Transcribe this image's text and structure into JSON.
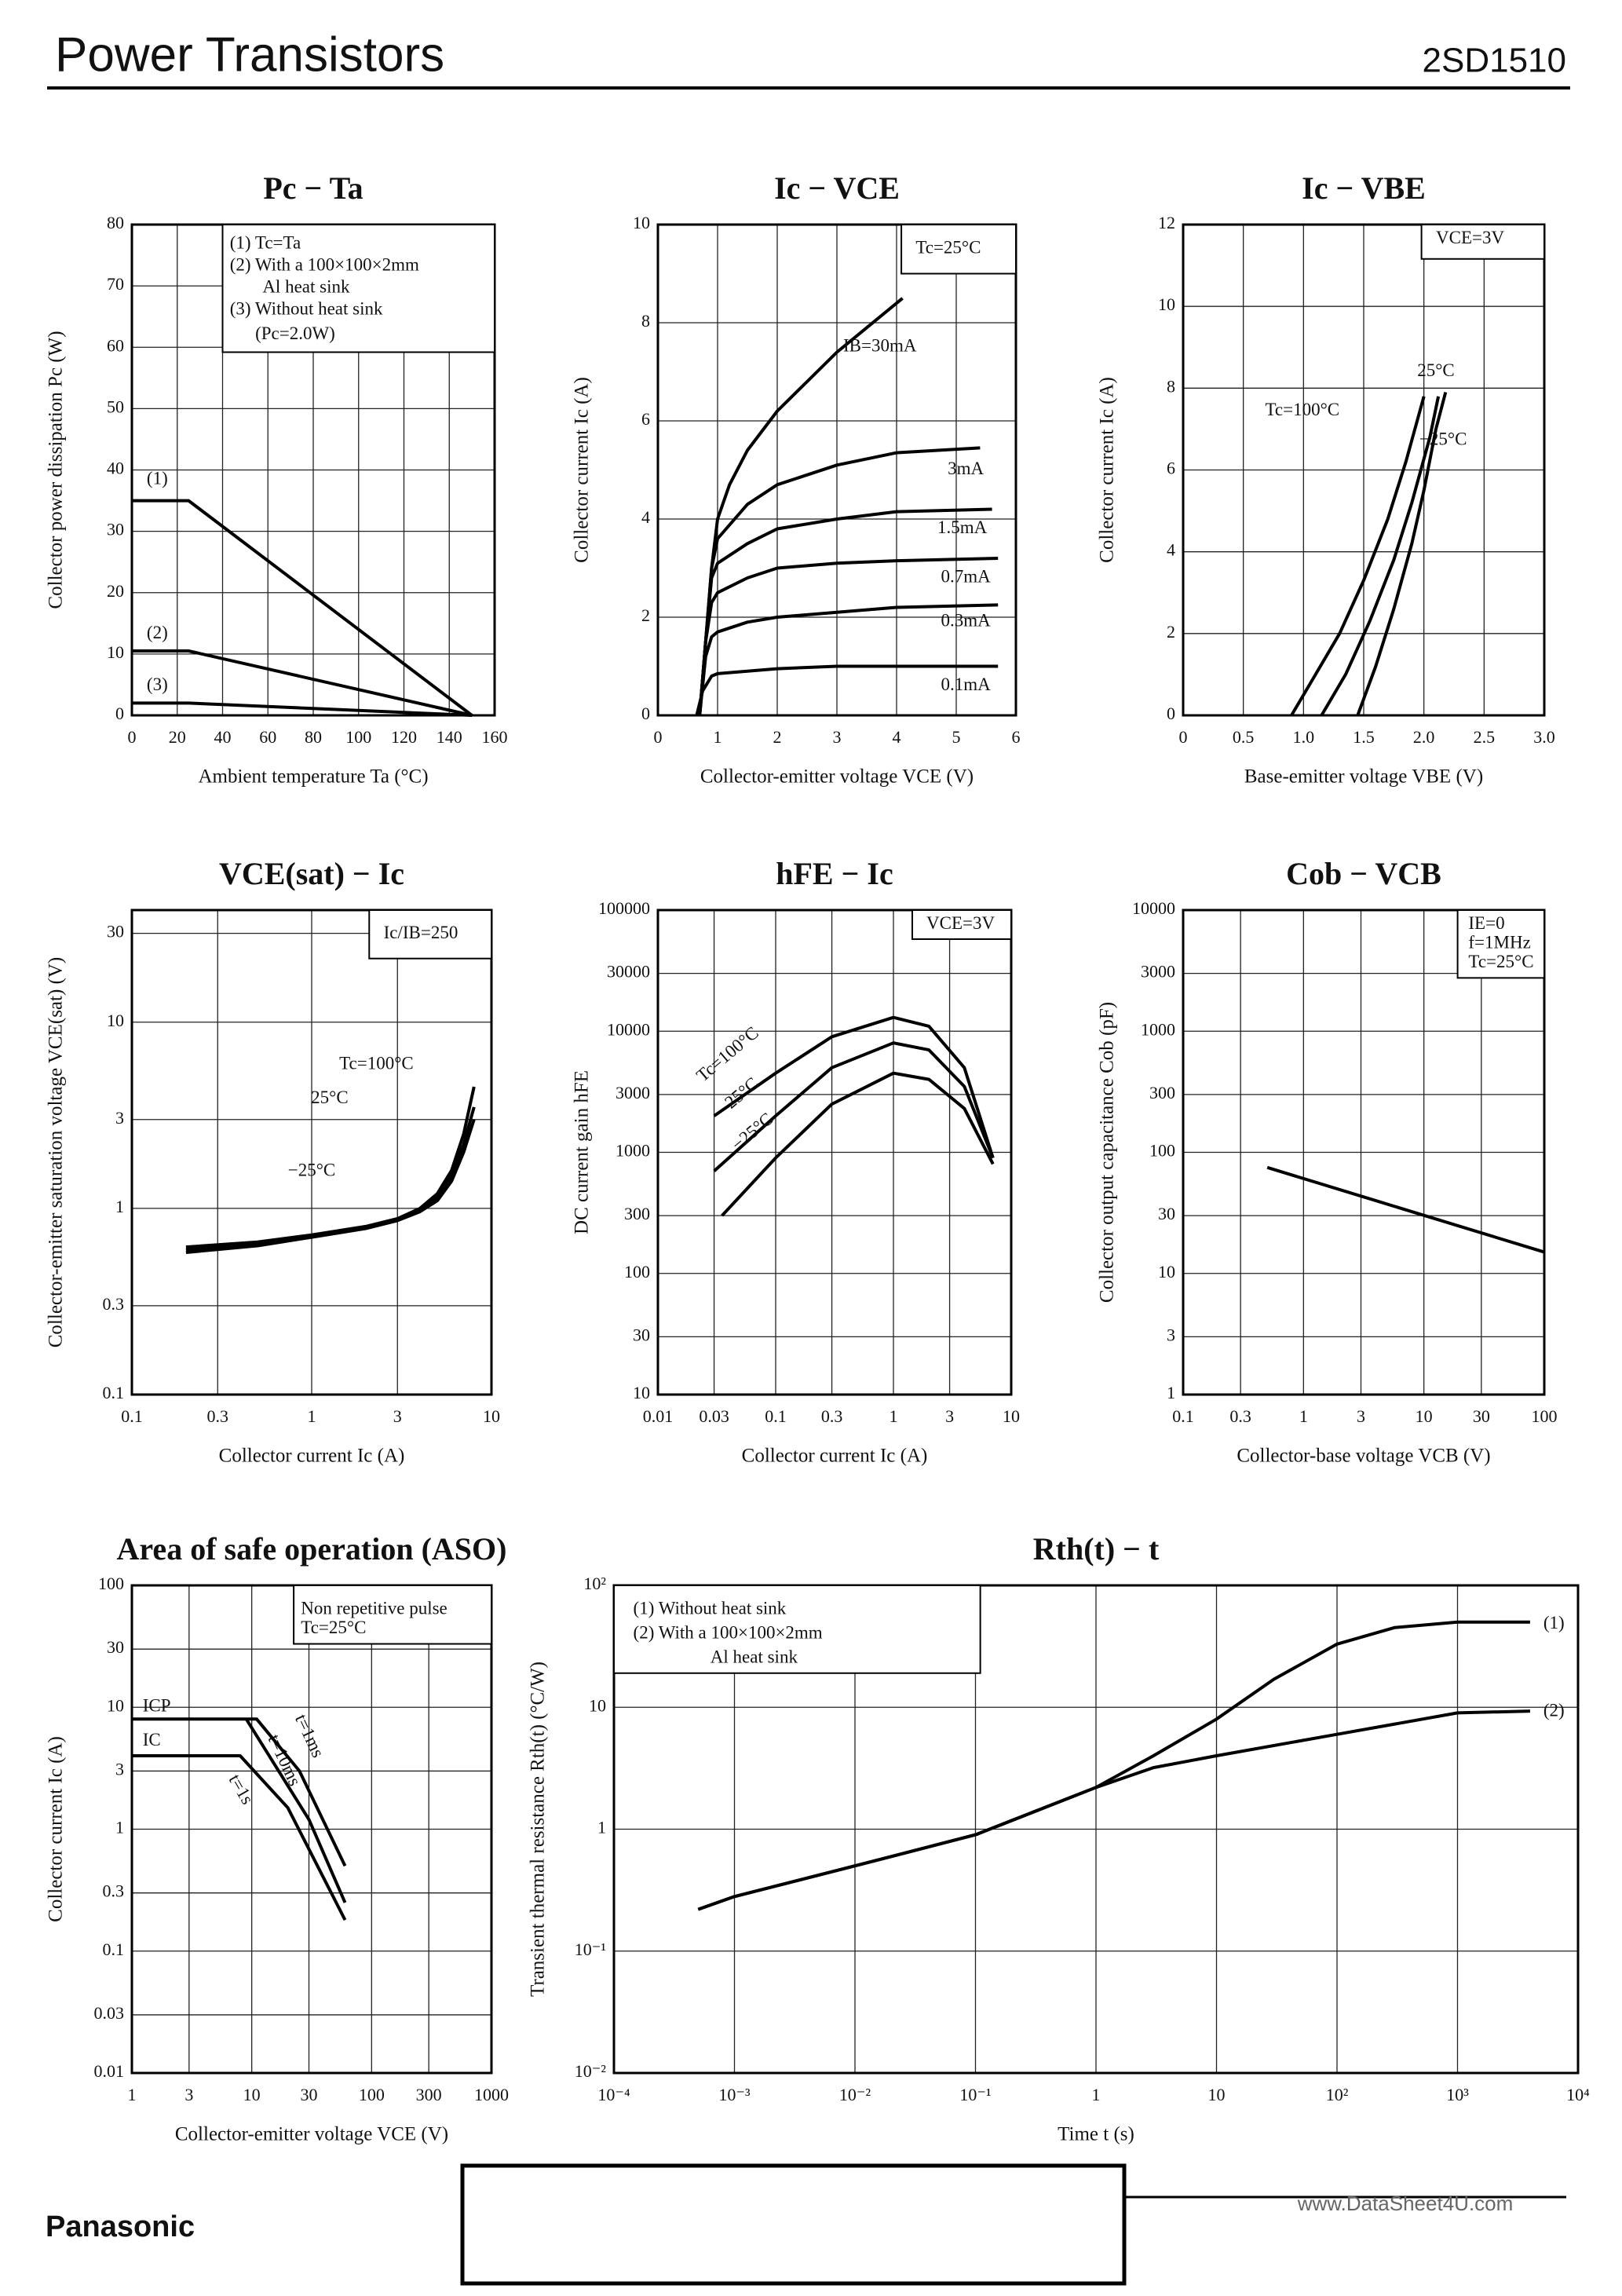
{
  "header": {
    "title": "Power Transistors",
    "part_number": "2SD1510"
  },
  "chart_data": [
    {
      "type": "line",
      "title": "Pc − Ta",
      "xlabel": "Ambient temperature Ta (°C)",
      "ylabel": "Collector power dissipation Pc (W)",
      "xlim": [
        0,
        160
      ],
      "ylim": [
        0,
        80
      ],
      "xticks": [
        0,
        20,
        40,
        60,
        80,
        100,
        120,
        140,
        160
      ],
      "yticks": [
        0,
        10,
        20,
        30,
        40,
        50,
        60,
        70,
        80
      ],
      "grid": true,
      "color": "#000000",
      "series": [
        {
          "name": "(1)",
          "x": [
            0,
            25,
            150
          ],
          "values": [
            35,
            35,
            0
          ]
        },
        {
          "name": "(2)",
          "x": [
            0,
            25,
            150
          ],
          "values": [
            10.5,
            10.5,
            0
          ]
        },
        {
          "name": "(3)",
          "x": [
            0,
            25,
            150
          ],
          "values": [
            2,
            2,
            0
          ]
        }
      ],
      "annotations": [
        "(1) Tc=Ta",
        "(2) With a 100×100×2mm",
        "Al heat sink",
        "(3) Without heat sink",
        "(Pc=2.0W)"
      ]
    },
    {
      "type": "line",
      "title": "Ic − VCE",
      "xlabel": "Collector-emitter voltage VCE (V)",
      "ylabel": "Collector current Ic (A)",
      "xlim": [
        0,
        6
      ],
      "ylim": [
        0,
        10
      ],
      "xticks": [
        0,
        1,
        2,
        3,
        4,
        5,
        6
      ],
      "yticks": [
        0,
        2,
        4,
        6,
        8,
        10
      ],
      "grid": true,
      "color": "#000000",
      "series": [
        {
          "name": "IB=30mA",
          "x": [
            0.7,
            0.8,
            0.9,
            1.0,
            1.2,
            1.5,
            2.0,
            2.5,
            3.0,
            3.5,
            4.1
          ],
          "values": [
            0,
            1.5,
            3.0,
            4.0,
            4.7,
            5.4,
            6.2,
            6.8,
            7.4,
            7.9,
            8.5
          ]
        },
        {
          "name": "3mA",
          "x": [
            0.7,
            0.8,
            0.9,
            1.0,
            1.5,
            2,
            3,
            4,
            5.4
          ],
          "values": [
            0,
            1.5,
            3.0,
            3.6,
            4.3,
            4.7,
            5.1,
            5.35,
            5.45
          ]
        },
        {
          "name": "1.5mA",
          "x": [
            0.7,
            0.8,
            0.9,
            1.0,
            1.5,
            2,
            3,
            4,
            5.6
          ],
          "values": [
            0,
            1.5,
            2.8,
            3.1,
            3.5,
            3.8,
            4.0,
            4.15,
            4.2
          ]
        },
        {
          "name": "0.7mA",
          "x": [
            0.7,
            0.8,
            0.9,
            1,
            1.5,
            2,
            3,
            4,
            5.7
          ],
          "values": [
            0,
            1.5,
            2.3,
            2.5,
            2.8,
            3.0,
            3.1,
            3.15,
            3.2
          ]
        },
        {
          "name": "0.3mA",
          "x": [
            0.7,
            0.8,
            0.9,
            1,
            1.5,
            2,
            3,
            4,
            5.7
          ],
          "values": [
            0,
            1.2,
            1.6,
            1.7,
            1.9,
            2.0,
            2.1,
            2.2,
            2.25
          ]
        },
        {
          "name": "0.1mA",
          "x": [
            0.65,
            0.75,
            0.9,
            1,
            1.5,
            2,
            3,
            4,
            5.7
          ],
          "values": [
            0,
            0.5,
            0.8,
            0.85,
            0.9,
            0.95,
            1.0,
            1.0,
            1.0
          ]
        }
      ],
      "annotations": [
        "Tc=25°C"
      ]
    },
    {
      "type": "line",
      "title": "Ic − VBE",
      "xlabel": "Base-emitter voltage VBE (V)",
      "ylabel": "Collector current Ic (A)",
      "xlim": [
        0,
        3
      ],
      "ylim": [
        0,
        12
      ],
      "xticks": [
        0,
        0.5,
        {
          "value": 1,
          "label": "1.0"
        },
        1.5,
        {
          "value": 2,
          "label": "2.0"
        },
        2.5,
        {
          "value": 3,
          "label": "3.0"
        }
      ],
      "yticks": [
        0,
        2,
        4,
        6,
        8,
        10,
        12
      ],
      "grid": true,
      "color": "#000000",
      "series": [
        {
          "name": "Tc=100°C",
          "x": [
            0.9,
            1.1,
            1.3,
            1.5,
            1.7,
            1.85,
            2.0
          ],
          "values": [
            0,
            1,
            2,
            3.3,
            4.8,
            6.2,
            7.8
          ]
        },
        {
          "name": "25°C",
          "x": [
            1.15,
            1.35,
            1.55,
            1.75,
            1.9,
            2.05,
            2.12
          ],
          "values": [
            0,
            1,
            2.3,
            3.8,
            5.2,
            6.8,
            7.8
          ]
        },
        {
          "name": "−25°C",
          "x": [
            1.45,
            1.6,
            1.75,
            1.9,
            2.0,
            2.1,
            2.18
          ],
          "values": [
            0,
            1.2,
            2.6,
            4.2,
            5.5,
            7,
            7.9
          ]
        }
      ],
      "annotations": [
        "VCE=3V"
      ]
    },
    {
      "type": "line",
      "title": "VCE(sat) − Ic",
      "xlabel": "Collector current Ic (A)",
      "ylabel": "Collector-emitter saturation voltage VCE(sat) (V)",
      "xlog": true,
      "ylog": true,
      "xlim": [
        0.1,
        10
      ],
      "ylim": [
        0.1,
        40
      ],
      "xticks": [
        0.1,
        0.3,
        1,
        3,
        10
      ],
      "yticks": [
        0.1,
        0.3,
        1,
        3,
        10,
        30
      ],
      "grid": true,
      "color": "#000000",
      "series": [
        {
          "name": "Tc=100°C",
          "x": [
            0.2,
            0.5,
            1,
            2,
            3,
            4,
            5,
            6,
            7,
            8
          ],
          "values": [
            0.62,
            0.66,
            0.72,
            0.8,
            0.88,
            1.0,
            1.2,
            1.6,
            2.5,
            4.5
          ]
        },
        {
          "name": "25°C",
          "x": [
            0.2,
            0.5,
            1,
            2,
            3,
            4,
            5,
            6,
            7,
            8
          ],
          "values": [
            0.6,
            0.65,
            0.71,
            0.79,
            0.87,
            0.98,
            1.15,
            1.5,
            2.2,
            3.5
          ]
        },
        {
          "name": "−25°C",
          "x": [
            0.2,
            0.5,
            1,
            2,
            3,
            4,
            5,
            6,
            7,
            8
          ],
          "values": [
            0.58,
            0.63,
            0.7,
            0.78,
            0.86,
            0.96,
            1.1,
            1.4,
            2.0,
            3.0
          ]
        }
      ],
      "annotations": [
        "Ic/IB=250"
      ]
    },
    {
      "type": "line",
      "title": "hFE − Ic",
      "xlabel": "Collector current Ic (A)",
      "ylabel": "DC current gain hFE",
      "xlog": true,
      "ylog": true,
      "xlim": [
        0.01,
        10
      ],
      "ylim": [
        10,
        100000
      ],
      "xticks": [
        0.01,
        0.03,
        0.1,
        0.3,
        1,
        3,
        10
      ],
      "yticks": [
        10,
        30,
        100,
        300,
        1000,
        3000,
        10000,
        30000,
        100000
      ],
      "grid": true,
      "color": "#000000",
      "series": [
        {
          "name": "Tc=100°C",
          "x": [
            0.03,
            0.1,
            0.3,
            1,
            2,
            4,
            7
          ],
          "values": [
            2000,
            4500,
            9000,
            13000,
            11000,
            5000,
            900
          ]
        },
        {
          "name": "25°C",
          "x": [
            0.03,
            0.1,
            0.3,
            1,
            2,
            4,
            7
          ],
          "values": [
            700,
            2000,
            5000,
            8000,
            7000,
            3500,
            900
          ]
        },
        {
          "name": "−25°C",
          "x": [
            0.035,
            0.1,
            0.3,
            1,
            2,
            4,
            7
          ],
          "values": [
            300,
            900,
            2500,
            4500,
            4000,
            2300,
            800
          ]
        }
      ],
      "annotations": [
        "VCE=3V"
      ]
    },
    {
      "type": "line",
      "title": "Cob − VCB",
      "xlabel": "Collector-base voltage VCB (V)",
      "ylabel": "Collector output capacitance Cob (pF)",
      "xlog": true,
      "ylog": true,
      "xlim": [
        0.1,
        100
      ],
      "ylim": [
        1,
        10000
      ],
      "xticks": [
        0.1,
        0.3,
        1,
        3,
        10,
        30,
        100
      ],
      "yticks": [
        1,
        3,
        10,
        30,
        100,
        300,
        1000,
        3000,
        10000
      ],
      "grid": true,
      "color": "#000000",
      "series": [
        {
          "x": [
            0.5,
            100
          ],
          "values": [
            75,
            15
          ]
        }
      ],
      "annotations": [
        "IE=0",
        "f=1MHz",
        "Tc=25°C"
      ]
    },
    {
      "type": "line",
      "title": "Area of safe operation (ASO)",
      "xlabel": "Collector-emitter voltage VCE (V)",
      "ylabel": "Collector current Ic (A)",
      "xlog": true,
      "ylog": true,
      "xlim": [
        1,
        1000
      ],
      "ylim": [
        0.01,
        100
      ],
      "xticks": [
        1,
        3,
        10,
        30,
        100,
        300,
        1000
      ],
      "yticks": [
        0.01,
        0.03,
        0.1,
        0.3,
        1,
        3,
        10,
        30,
        100
      ],
      "grid": true,
      "color": "#000000",
      "series": [
        {
          "name": "t=1s",
          "x": [
            1,
            8,
            20,
            60
          ],
          "values": [
            4,
            4,
            1.5,
            0.18
          ]
        },
        {
          "name": "t=10ms",
          "x": [
            9,
            30,
            60
          ],
          "values": [
            8,
            1.2,
            0.25
          ]
        },
        {
          "name": "t=1ms",
          "x": [
            1,
            11,
            25,
            60
          ],
          "values": [
            8,
            8,
            3,
            0.5
          ]
        }
      ],
      "annotations": [
        "Non repetitive pulse",
        "Tc=25°C",
        "ICP",
        "IC"
      ]
    },
    {
      "type": "line",
      "title": "Rth(t) − t",
      "xlabel": "Time t (s)",
      "ylabel": "Transient thermal resistance Rth(t) (°C/W)",
      "xlog": true,
      "ylog": true,
      "xlim": [
        0.0001,
        10000
      ],
      "ylim": [
        0.01,
        100
      ],
      "xticks": [
        {
          "value": 0.0001,
          "label": "10⁻⁴"
        },
        {
          "value": 0.001,
          "label": "10⁻³"
        },
        {
          "value": 0.01,
          "label": "10⁻²"
        },
        {
          "value": 0.1,
          "label": "10⁻¹"
        },
        1,
        10,
        {
          "value": 100,
          "label": "10²"
        },
        {
          "value": 1000,
          "label": "10³"
        },
        {
          "value": 10000,
          "label": "10⁴"
        }
      ],
      "yticks": [
        {
          "value": 0.01,
          "label": "10⁻²"
        },
        {
          "value": 0.1,
          "label": "10⁻¹"
        },
        1,
        10,
        {
          "value": 100,
          "label": "10²"
        }
      ],
      "grid": true,
      "color": "#000000",
      "series": [
        {
          "name": "(1)",
          "x": [
            0.0005,
            0.001,
            0.01,
            0.1,
            1,
            3,
            10,
            30,
            100,
            300,
            1000,
            4000
          ],
          "values": [
            0.22,
            0.28,
            0.5,
            0.9,
            2.2,
            4,
            8,
            17,
            33,
            45,
            50,
            50
          ]
        },
        {
          "name": "(2)",
          "x": [
            0.0005,
            0.001,
            0.01,
            0.1,
            1,
            3,
            10,
            100,
            1000,
            4000
          ],
          "values": [
            0.22,
            0.28,
            0.5,
            0.9,
            2.2,
            3.2,
            4,
            6,
            9,
            9.3
          ]
        }
      ],
      "annotations": [
        "(1) Without heat sink",
        "(2) With a 100×100×2mm",
        "Al heat sink"
      ]
    }
  ],
  "footer": {
    "brand": "Panasonic",
    "watermark": "www.DataSheet4U.com"
  }
}
